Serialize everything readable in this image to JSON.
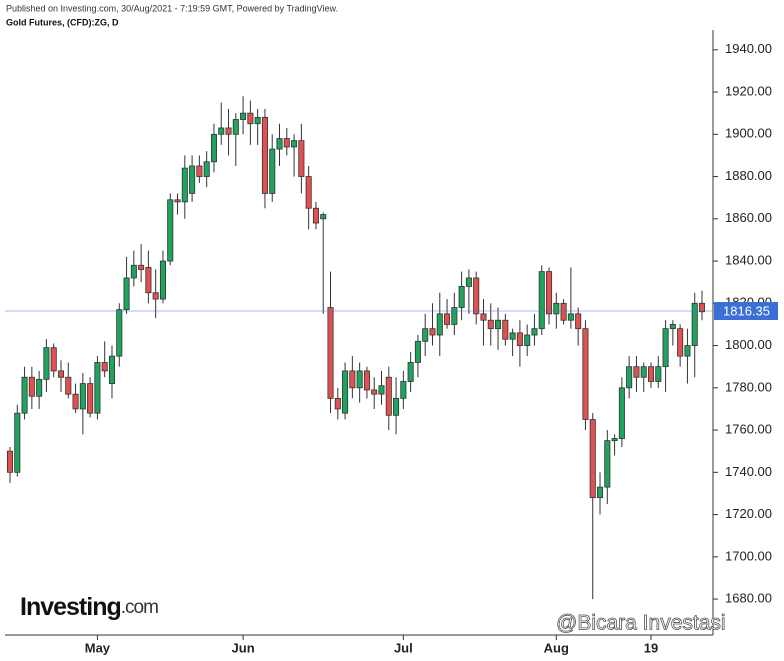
{
  "chart_data": {
    "type": "candlestick",
    "subtitle": "Published on Investing.com, 30/Aug/2021 - 7:19:59 GMT, Powered by TradingView.",
    "title": "Gold Futures, (CFD):ZG, D",
    "logo": {
      "brand": "Investing",
      "suffix": ".com"
    },
    "watermark": "@Bicara Investasi",
    "up_color": "#1fa35f",
    "down_color": "#e05252",
    "last_price": 1816.35,
    "last_price_color": "#3b6fd6",
    "ylim": [
      1663,
      1947
    ],
    "yticks": [
      {
        "value": 1680,
        "label": "1680.00"
      },
      {
        "value": 1700,
        "label": "1700.00"
      },
      {
        "value": 1720,
        "label": "1720.00"
      },
      {
        "value": 1740,
        "label": "1740.00"
      },
      {
        "value": 1760,
        "label": "1760.00"
      },
      {
        "value": 1780,
        "label": "1780.00"
      },
      {
        "value": 1800,
        "label": "1800.00"
      },
      {
        "value": 1820,
        "label": "1820.00"
      },
      {
        "value": 1840,
        "label": "1840.00"
      },
      {
        "value": 1860,
        "label": "1860.00"
      },
      {
        "value": 1880,
        "label": "1880.00"
      },
      {
        "value": 1900,
        "label": "1900.00"
      },
      {
        "value": 1920,
        "label": "1920.00"
      },
      {
        "value": 1940,
        "label": "1940.00"
      }
    ],
    "categories": [
      null,
      null,
      null,
      null,
      null,
      null,
      null,
      null,
      null,
      null,
      null,
      null,
      "May",
      null,
      null,
      null,
      null,
      null,
      null,
      null,
      null,
      null,
      null,
      null,
      null,
      null,
      null,
      null,
      null,
      null,
      null,
      null,
      "Jun",
      null,
      null,
      null,
      null,
      null,
      null,
      null,
      null,
      null,
      null,
      null,
      null,
      null,
      null,
      null,
      null,
      null,
      null,
      null,
      null,
      null,
      "Jul",
      null,
      null,
      null,
      null,
      null,
      null,
      null,
      null,
      null,
      null,
      null,
      null,
      null,
      null,
      null,
      null,
      null,
      null,
      null,
      null,
      "Aug",
      null,
      null,
      null,
      null,
      null,
      null,
      null,
      null,
      null,
      null,
      null,
      null,
      "19",
      null,
      null,
      null,
      null,
      null,
      null,
      null
    ],
    "open": [
      1750,
      1740,
      1768,
      1785,
      1776,
      1784,
      1799,
      1788,
      1785,
      1777,
      1770,
      1782,
      1768,
      1792,
      1782,
      1795,
      1817,
      1832,
      1838,
      1837,
      1825,
      1822,
      1840,
      1869,
      1868,
      1872,
      1885,
      1880,
      1887,
      1900,
      1903,
      1900,
      1907,
      1910,
      1905,
      1908,
      1872,
      1893,
      1898,
      1894,
      1897,
      1880,
      1865,
      1860,
      1818,
      1775,
      1768,
      1788,
      1780,
      1788,
      1779,
      1777,
      1785,
      1767,
      1775,
      1783,
      1792,
      1802,
      1808,
      1805,
      1815,
      1810,
      1818,
      1828,
      1832,
      1815,
      1812,
      1808,
      1812,
      1803,
      1806,
      1800,
      1805,
      1808,
      1835,
      1815,
      1820,
      1812,
      1815,
      1808,
      1765,
      1728,
      1733,
      1755,
      1756,
      1780,
      1790,
      1785,
      1790,
      1783,
      1790,
      1808,
      1808,
      1795,
      1800,
      1820
    ],
    "high": [
      1752,
      1772,
      1790,
      1790,
      1788,
      1803,
      1801,
      1793,
      1792,
      1782,
      1787,
      1785,
      1795,
      1802,
      1800,
      1820,
      1842,
      1845,
      1848,
      1845,
      1836,
      1845,
      1872,
      1872,
      1890,
      1890,
      1890,
      1892,
      1905,
      1915,
      1912,
      1910,
      1918,
      1916,
      1912,
      1912,
      1900,
      1905,
      1903,
      1900,
      1905,
      1885,
      1868,
      1863,
      1835,
      1780,
      1792,
      1795,
      1792,
      1790,
      1785,
      1788,
      1790,
      1785,
      1788,
      1797,
      1805,
      1815,
      1820,
      1825,
      1822,
      1825,
      1835,
      1836,
      1835,
      1822,
      1820,
      1818,
      1815,
      1808,
      1812,
      1810,
      1815,
      1838,
      1837,
      1825,
      1822,
      1837,
      1818,
      1812,
      1768,
      1740,
      1760,
      1758,
      1785,
      1795,
      1795,
      1792,
      1792,
      1795,
      1812,
      1812,
      1810,
      1808,
      1825,
      1826
    ],
    "low": [
      1735,
      1738,
      1765,
      1770,
      1770,
      1778,
      1785,
      1778,
      1775,
      1768,
      1758,
      1766,
      1765,
      1785,
      1775,
      1790,
      1815,
      1828,
      1830,
      1820,
      1813,
      1820,
      1838,
      1862,
      1860,
      1868,
      1877,
      1875,
      1882,
      1895,
      1890,
      1885,
      1900,
      1895,
      1895,
      1865,
      1868,
      1885,
      1890,
      1880,
      1872,
      1855,
      1855,
      1815,
      1768,
      1765,
      1765,
      1775,
      1773,
      1775,
      1770,
      1772,
      1760,
      1758,
      1770,
      1778,
      1785,
      1795,
      1800,
      1795,
      1808,
      1805,
      1812,
      1815,
      1810,
      1800,
      1800,
      1798,
      1800,
      1795,
      1790,
      1795,
      1800,
      1805,
      1810,
      1808,
      1810,
      1808,
      1800,
      1760,
      1680,
      1720,
      1725,
      1748,
      1752,
      1775,
      1778,
      1778,
      1780,
      1780,
      1778,
      1800,
      1790,
      1782,
      1785,
      1812
    ],
    "close": [
      1740,
      1768,
      1785,
      1776,
      1784,
      1799,
      1788,
      1785,
      1777,
      1770,
      1782,
      1768,
      1792,
      1788,
      1795,
      1817,
      1832,
      1838,
      1836,
      1825,
      1822,
      1840,
      1869,
      1868,
      1884,
      1885,
      1880,
      1887,
      1900,
      1903,
      1900,
      1907,
      1910,
      1905,
      1908,
      1872,
      1893,
      1898,
      1894,
      1897,
      1880,
      1865,
      1858,
      1862,
      1775,
      1770,
      1788,
      1780,
      1788,
      1779,
      1777,
      1781,
      1767,
      1775,
      1783,
      1792,
      1802,
      1808,
      1805,
      1815,
      1810,
      1818,
      1828,
      1832,
      1815,
      1812,
      1808,
      1812,
      1803,
      1806,
      1800,
      1805,
      1808,
      1835,
      1815,
      1820,
      1812,
      1815,
      1808,
      1765,
      1728,
      1733,
      1755,
      1756,
      1780,
      1790,
      1785,
      1790,
      1783,
      1790,
      1808,
      1810,
      1795,
      1800,
      1820,
      1816
    ]
  }
}
